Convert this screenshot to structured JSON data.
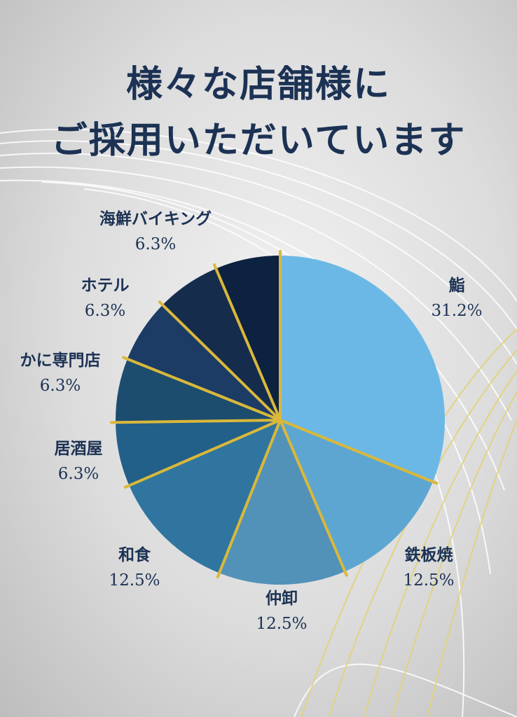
{
  "title_line1": "様々な店舗様に",
  "title_line2": "ご採用いただいています",
  "colors": {
    "title": "#1c3254",
    "gold": "#d9b83a"
  },
  "chart_data": {
    "type": "pie",
    "start": "top, clockwise",
    "slices": [
      {
        "label": "鮨",
        "value": 31.2,
        "value_label": "31.2%",
        "color": "#6bb8e6"
      },
      {
        "label": "鉄板焼",
        "value": 12.5,
        "value_label": "12.5%",
        "color": "#5ea6d2"
      },
      {
        "label": "仲卸",
        "value": 12.5,
        "value_label": "12.5%",
        "color": "#5291b8"
      },
      {
        "label": "和食",
        "value": 12.5,
        "value_label": "12.5%",
        "color": "#2f75a0"
      },
      {
        "label": "居酒屋",
        "value": 6.3,
        "value_label": "6.3%",
        "color": "#225f89"
      },
      {
        "label": "かに専門店",
        "value": 6.3,
        "value_label": "6.3%",
        "color": "#1d4d6e"
      },
      {
        "label": "ホテル",
        "value": 6.3,
        "value_label": "6.3%",
        "color": "#1c3c66"
      },
      {
        "label": "海鮮バイキング",
        "value": 6.3,
        "value_label": "6.3%",
        "color": "#152c4c"
      },
      {
        "label": "",
        "value": 6.4,
        "value_label": "",
        "color": "#0d2140"
      }
    ]
  }
}
